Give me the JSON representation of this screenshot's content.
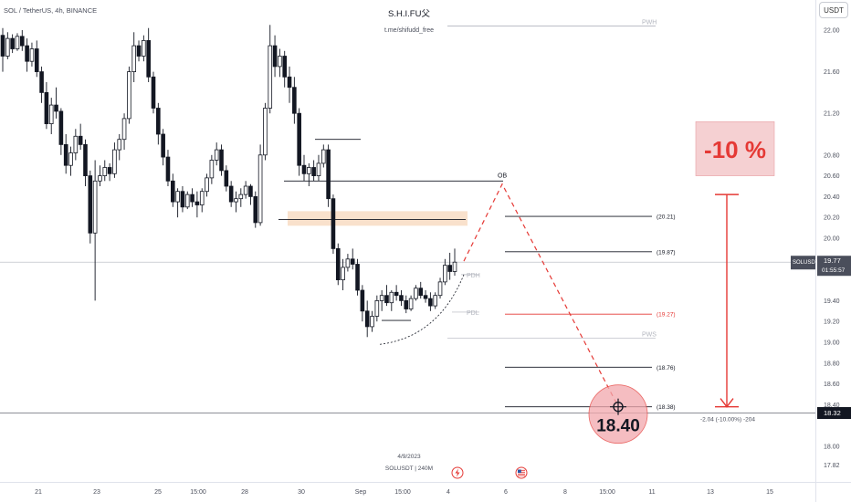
{
  "header": {
    "pair": "SOL / TetherUS, 4h, BINANCE",
    "brand": "S.H.I.FU父",
    "subtitle": "t.me/shifudd_free",
    "currency_button": "USDT"
  },
  "footer": {
    "date": "4/9/2023",
    "symbol_tf": "SOLUSDT | 240M"
  },
  "price_scale": {
    "ticks": [
      {
        "label": "22.00",
        "v": 22.0
      },
      {
        "label": "21.60",
        "v": 21.6
      },
      {
        "label": "21.20",
        "v": 21.2
      },
      {
        "label": "20.80",
        "v": 20.8
      },
      {
        "label": "20.60",
        "v": 20.6
      },
      {
        "label": "20.40",
        "v": 20.4
      },
      {
        "label": "20.20",
        "v": 20.2
      },
      {
        "label": "20.00",
        "v": 20.0
      },
      {
        "label": "19.80",
        "v": 19.8
      },
      {
        "label": "19.40",
        "v": 19.4
      },
      {
        "label": "19.20",
        "v": 19.2
      },
      {
        "label": "19.00",
        "v": 19.0
      },
      {
        "label": "18.80",
        "v": 18.8
      },
      {
        "label": "18.60",
        "v": 18.6
      },
      {
        "label": "18.40",
        "v": 18.4
      },
      {
        "label": "18.00",
        "v": 18.0
      },
      {
        "label": "17.82",
        "v": 17.82
      }
    ],
    "current_symbol": "SOLUSDT",
    "current_price": "19.77",
    "countdown": "01:55:57",
    "marker_price": "18.32"
  },
  "time_axis": [
    "21",
    "23",
    "25",
    "15:00",
    "28",
    "30",
    "Sep",
    "15:00",
    "4",
    "6",
    "8",
    "15:00",
    "11",
    "13",
    "15"
  ],
  "annotations": {
    "ob": "OB",
    "pwh": "PWH",
    "pdh": "PDH",
    "pdl": "PDL",
    "pws": "PWS",
    "levels": [
      {
        "label": "(20.21)",
        "v": 20.21,
        "color": "#131722"
      },
      {
        "label": "(19.87)",
        "v": 19.87,
        "color": "#131722"
      },
      {
        "label": "(19.27)",
        "v": 19.27,
        "color": "#e53935"
      },
      {
        "label": "(18.76)",
        "v": 18.76,
        "color": "#131722"
      },
      {
        "label": "(18.38)",
        "v": 18.38,
        "color": "#131722"
      }
    ],
    "percent_box": "-10 %",
    "target_price": "18.40",
    "measure": "-2.04 (-10.00%) -204"
  },
  "colors": {
    "candle": "#131722",
    "accent_red": "#e53935",
    "ob_zone": "#f7d9bf",
    "percent_bg": "#f5d0d2",
    "target_bg": "#f2a8ad",
    "current_price_bg": "#4a4e5b",
    "marker_bg": "#131722"
  },
  "chart_data": {
    "type": "candlestick",
    "source": "SOL / TetherUS, 4h, BINANCE",
    "ylim": [
      17.82,
      22.25
    ],
    "ohlc": [
      [
        21.95,
        22.02,
        21.6,
        21.75
      ],
      [
        21.75,
        21.98,
        21.72,
        21.92
      ],
      [
        21.92,
        21.96,
        21.78,
        21.82
      ],
      [
        21.82,
        21.97,
        21.8,
        21.94
      ],
      [
        21.94,
        22.0,
        21.8,
        21.85
      ],
      [
        21.85,
        21.92,
        21.6,
        21.7
      ],
      [
        21.7,
        21.88,
        21.65,
        21.82
      ],
      [
        21.82,
        21.9,
        21.55,
        21.6
      ],
      [
        21.6,
        21.65,
        21.3,
        21.4
      ],
      [
        21.4,
        21.5,
        21.05,
        21.1
      ],
      [
        21.1,
        21.35,
        21.0,
        21.28
      ],
      [
        21.28,
        21.45,
        21.15,
        21.22
      ],
      [
        21.22,
        21.25,
        20.8,
        20.9
      ],
      [
        20.9,
        21.0,
        20.62,
        20.7
      ],
      [
        20.7,
        20.88,
        20.6,
        20.82
      ],
      [
        20.82,
        21.05,
        20.75,
        20.98
      ],
      [
        20.98,
        21.1,
        20.85,
        20.9
      ],
      [
        20.9,
        20.95,
        20.5,
        20.6
      ],
      [
        20.6,
        20.65,
        19.95,
        20.05
      ],
      [
        20.05,
        20.75,
        19.4,
        20.55
      ],
      [
        20.55,
        20.7,
        20.5,
        20.6
      ],
      [
        20.6,
        20.75,
        20.55,
        20.68
      ],
      [
        20.68,
        20.72,
        20.55,
        20.62
      ],
      [
        20.62,
        20.92,
        20.58,
        20.85
      ],
      [
        20.85,
        21.0,
        20.75,
        20.95
      ],
      [
        20.95,
        21.2,
        20.85,
        21.15
      ],
      [
        21.15,
        21.65,
        21.1,
        21.6
      ],
      [
        21.6,
        21.98,
        21.5,
        21.85
      ],
      [
        21.85,
        21.9,
        21.7,
        21.75
      ],
      [
        21.75,
        21.95,
        21.7,
        21.9
      ],
      [
        21.9,
        22.02,
        21.5,
        21.55
      ],
      [
        21.55,
        21.6,
        21.2,
        21.25
      ],
      [
        21.25,
        21.3,
        20.9,
        21.0
      ],
      [
        21.0,
        21.05,
        20.7,
        20.78
      ],
      [
        20.78,
        20.85,
        20.5,
        20.55
      ],
      [
        20.55,
        20.62,
        20.3,
        20.35
      ],
      [
        20.35,
        20.48,
        20.2,
        20.45
      ],
      [
        20.45,
        20.5,
        20.25,
        20.3
      ],
      [
        20.3,
        20.45,
        20.28,
        20.42
      ],
      [
        20.42,
        20.48,
        20.3,
        20.35
      ],
      [
        20.35,
        20.45,
        20.2,
        20.32
      ],
      [
        20.32,
        20.48,
        20.25,
        20.45
      ],
      [
        20.45,
        20.62,
        20.4,
        20.58
      ],
      [
        20.58,
        20.8,
        20.52,
        20.75
      ],
      [
        20.75,
        20.92,
        20.7,
        20.85
      ],
      [
        20.85,
        20.9,
        20.6,
        20.65
      ],
      [
        20.65,
        20.7,
        20.45,
        20.5
      ],
      [
        20.5,
        20.55,
        20.3,
        20.35
      ],
      [
        20.35,
        20.45,
        20.25,
        20.38
      ],
      [
        20.38,
        20.48,
        20.3,
        20.42
      ],
      [
        20.42,
        20.55,
        20.38,
        20.5
      ],
      [
        20.5,
        20.52,
        20.32,
        20.4
      ],
      [
        20.4,
        20.45,
        20.1,
        20.15
      ],
      [
        20.15,
        20.9,
        20.12,
        20.8
      ],
      [
        20.8,
        21.3,
        20.75,
        21.25
      ],
      [
        21.25,
        22.05,
        21.2,
        21.85
      ],
      [
        21.85,
        21.95,
        21.55,
        21.65
      ],
      [
        21.65,
        21.82,
        21.55,
        21.75
      ],
      [
        21.75,
        21.8,
        21.45,
        21.55
      ],
      [
        21.55,
        21.65,
        21.3,
        21.45
      ],
      [
        21.45,
        21.55,
        21.1,
        21.2
      ],
      [
        21.2,
        21.25,
        20.6,
        20.7
      ],
      [
        20.7,
        20.8,
        20.55,
        20.62
      ],
      [
        20.62,
        20.72,
        20.5,
        20.68
      ],
      [
        20.68,
        20.75,
        20.55,
        20.6
      ],
      [
        20.6,
        20.8,
        20.55,
        20.72
      ],
      [
        20.72,
        20.9,
        20.68,
        20.85
      ],
      [
        20.85,
        20.9,
        20.3,
        20.38
      ],
      [
        20.38,
        20.42,
        19.85,
        19.9
      ],
      [
        19.9,
        19.95,
        19.55,
        19.6
      ],
      [
        19.6,
        19.8,
        19.5,
        19.72
      ],
      [
        19.72,
        19.85,
        19.68,
        19.8
      ],
      [
        19.8,
        19.9,
        19.7,
        19.75
      ],
      [
        19.75,
        19.8,
        19.45,
        19.5
      ],
      [
        19.5,
        19.55,
        19.2,
        19.3
      ],
      [
        19.3,
        19.4,
        19.05,
        19.15
      ],
      [
        19.15,
        19.3,
        19.1,
        19.25
      ],
      [
        19.25,
        19.45,
        19.2,
        19.4
      ],
      [
        19.4,
        19.5,
        19.3,
        19.45
      ],
      [
        19.45,
        19.55,
        19.35,
        19.38
      ],
      [
        19.38,
        19.5,
        19.3,
        19.48
      ],
      [
        19.48,
        19.55,
        19.4,
        19.45
      ],
      [
        19.45,
        19.5,
        19.35,
        19.4
      ],
      [
        19.4,
        19.45,
        19.28,
        19.32
      ],
      [
        19.32,
        19.45,
        19.3,
        19.42
      ],
      [
        19.42,
        19.55,
        19.4,
        19.52
      ],
      [
        19.52,
        19.58,
        19.42,
        19.45
      ],
      [
        19.45,
        19.5,
        19.38,
        19.42
      ],
      [
        19.42,
        19.48,
        19.3,
        19.35
      ],
      [
        19.35,
        19.48,
        19.32,
        19.45
      ],
      [
        19.45,
        19.62,
        19.42,
        19.58
      ],
      [
        19.58,
        19.8,
        19.55,
        19.74
      ],
      [
        19.74,
        19.86,
        19.6,
        19.68
      ],
      [
        19.68,
        19.9,
        19.64,
        19.77
      ]
    ],
    "levels": [
      {
        "name": "(20.21)",
        "value": 20.21
      },
      {
        "name": "(19.87)",
        "value": 19.87
      },
      {
        "name": "(19.27)",
        "value": 19.27
      },
      {
        "name": "(18.76)",
        "value": 18.76
      },
      {
        "name": "(18.38)",
        "value": 18.38
      }
    ],
    "target": 18.4,
    "measure_change": -2.04,
    "measure_percent": -10.0
  }
}
